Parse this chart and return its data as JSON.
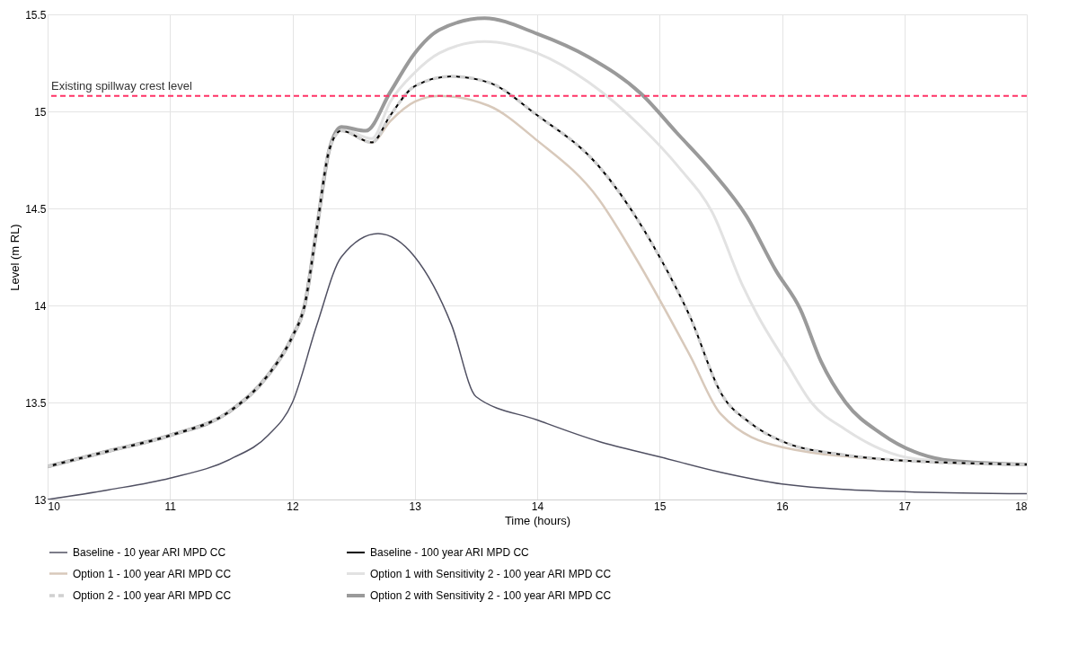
{
  "chart_data": {
    "type": "line",
    "xlabel": "Time (hours)",
    "ylabel": "Level (m RL)",
    "xlim": [
      10,
      18
    ],
    "ylim": [
      13,
      15.5
    ],
    "xticks": [
      10,
      11,
      12,
      13,
      14,
      15,
      16,
      17,
      18
    ],
    "yticks": [
      13,
      13.5,
      14,
      14.5,
      15,
      15.5
    ],
    "grid": true,
    "legend": "bottom",
    "line_style": "solid",
    "ref_lines": [
      {
        "axis": "y",
        "value": 15.08,
        "label": "Existing spillway crest level",
        "color": "#ff3366",
        "line_style": "dashed"
      }
    ],
    "series": [
      {
        "name": "Baseline - 10 year ARI MPD CC",
        "color": "#505062",
        "x": [
          10,
          10.5,
          11,
          11.5,
          11.8,
          12,
          12.2,
          12.4,
          12.7,
          13,
          13.3,
          13.5,
          14,
          14.5,
          15,
          15.5,
          16,
          17,
          18
        ],
        "values": [
          13.0,
          13.05,
          13.11,
          13.21,
          13.33,
          13.5,
          13.9,
          14.25,
          14.37,
          14.25,
          13.9,
          13.53,
          13.41,
          13.3,
          13.22,
          13.14,
          13.08,
          13.04,
          13.03
        ]
      },
      {
        "name": "Baseline - 100 year ARI MPD CC",
        "color": "#000000",
        "x": [
          10,
          10.5,
          11,
          11.5,
          11.8,
          12,
          12.1,
          12.2,
          12.3,
          12.4,
          12.65,
          12.8,
          13,
          13.3,
          13.6,
          14,
          14.5,
          15,
          15.25,
          15.5,
          15.75,
          16,
          16.5,
          17,
          18
        ],
        "values": [
          13.17,
          13.25,
          13.33,
          13.46,
          13.64,
          13.84,
          14.0,
          14.4,
          14.8,
          14.9,
          14.84,
          14.98,
          15.13,
          15.18,
          15.15,
          14.98,
          14.72,
          14.25,
          13.94,
          13.55,
          13.39,
          13.3,
          13.23,
          13.2,
          13.18
        ]
      },
      {
        "name": "Option 1 - 100 year ARI MPD CC",
        "color": "#d8c9bb",
        "x": [
          10,
          10.5,
          11,
          11.5,
          11.8,
          12,
          12.1,
          12.2,
          12.3,
          12.4,
          12.65,
          12.8,
          13,
          13.2,
          13.6,
          14,
          14.5,
          14.8,
          15.25,
          15.5,
          16,
          17,
          18
        ],
        "values": [
          13.17,
          13.25,
          13.33,
          13.46,
          13.64,
          13.84,
          14.0,
          14.4,
          14.8,
          14.9,
          14.84,
          14.95,
          15.05,
          15.08,
          15.03,
          14.85,
          14.55,
          14.25,
          13.74,
          13.44,
          13.27,
          13.2,
          13.18
        ]
      },
      {
        "name": "Option 1 with Sensitivity 2  - 100 year ARI MPD CC",
        "color": "#e2e2e2",
        "x": [
          10,
          10.5,
          11,
          11.5,
          11.8,
          12,
          12.1,
          12.2,
          12.3,
          12.4,
          12.65,
          12.8,
          13,
          13.2,
          13.57,
          14,
          14.42,
          14.85,
          15.16,
          15.43,
          15.68,
          15.8,
          16.04,
          16.24,
          16.52,
          17.09,
          18
        ],
        "values": [
          13.17,
          13.25,
          13.33,
          13.46,
          13.64,
          13.84,
          14.0,
          14.4,
          14.8,
          14.91,
          14.86,
          15.05,
          15.2,
          15.3,
          15.36,
          15.3,
          15.15,
          14.92,
          14.71,
          14.48,
          14.1,
          13.95,
          13.7,
          13.5,
          13.36,
          13.21,
          13.18
        ]
      },
      {
        "name": "Option 2 - 100 year ARI MPD CC",
        "color": "#d0d0d0",
        "line_style": "dashed",
        "x": [
          10,
          10.5,
          11,
          11.5,
          11.8,
          12,
          12.1,
          12.2,
          12.3,
          12.4,
          12.65,
          12.8,
          13,
          13.3,
          13.6,
          14,
          14.5,
          15,
          15.25,
          15.5,
          15.75,
          16,
          16.5,
          17,
          18
        ],
        "values": [
          13.17,
          13.25,
          13.33,
          13.46,
          13.64,
          13.84,
          14.0,
          14.4,
          14.8,
          14.9,
          14.84,
          14.98,
          15.13,
          15.18,
          15.15,
          14.98,
          14.72,
          14.25,
          13.94,
          13.55,
          13.39,
          13.3,
          13.23,
          13.2,
          13.18
        ]
      },
      {
        "name": "Option 2 with Sensitivity 2  - 100 year ARI MPD CC",
        "color": "#9a9a9a",
        "x": [
          10,
          10.5,
          11,
          11.5,
          11.8,
          12,
          12.1,
          12.2,
          12.3,
          12.4,
          12.6,
          12.8,
          13,
          13.2,
          13.57,
          14,
          14.42,
          14.85,
          15.14,
          15.43,
          15.71,
          15.95,
          16.15,
          16.32,
          16.52,
          16.81,
          17.38,
          18
        ],
        "values": [
          13.17,
          13.25,
          13.33,
          13.46,
          13.64,
          13.84,
          14.0,
          14.4,
          14.8,
          14.92,
          14.9,
          15.1,
          15.3,
          15.42,
          15.48,
          15.4,
          15.28,
          15.09,
          14.89,
          14.69,
          14.46,
          14.18,
          13.98,
          13.71,
          13.5,
          13.34,
          13.2,
          13.18
        ]
      }
    ]
  }
}
